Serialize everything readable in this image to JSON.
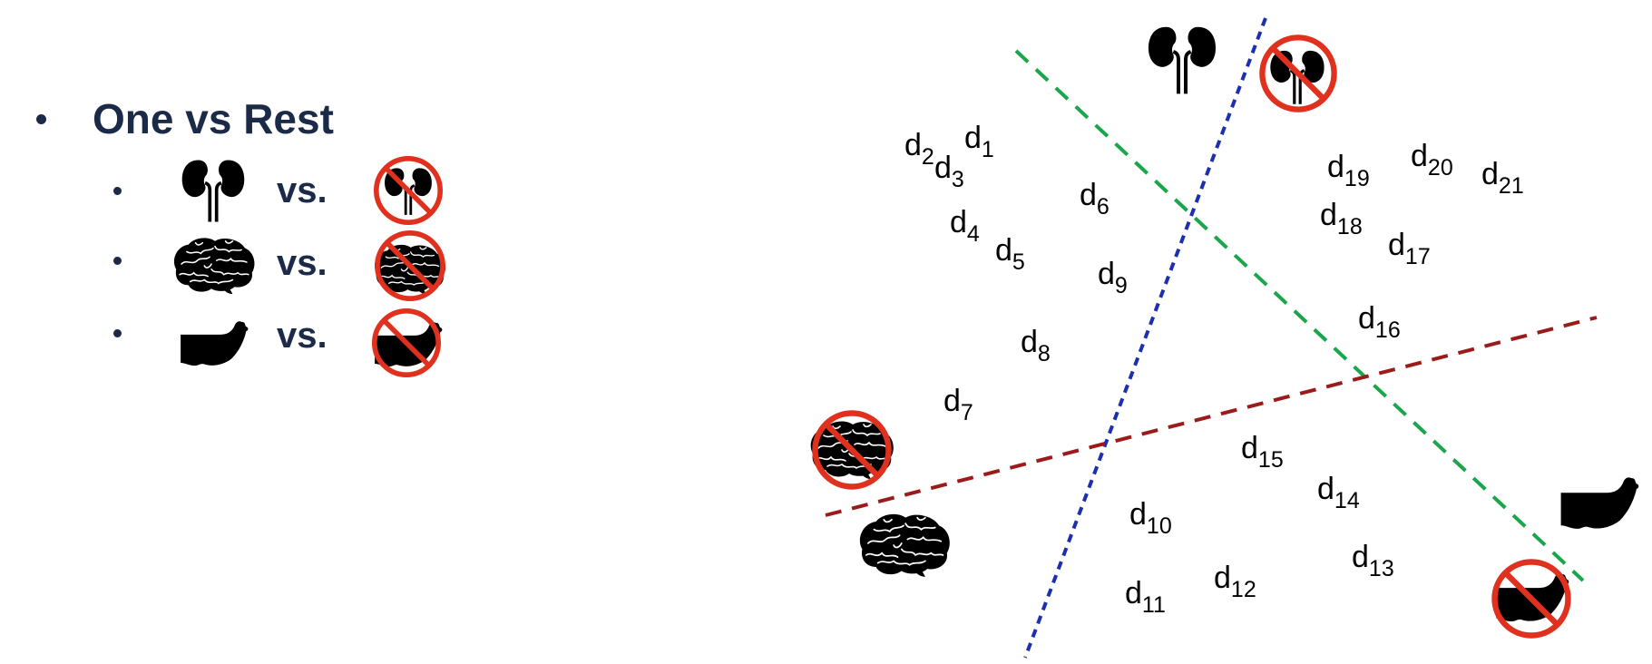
{
  "heading": "One vs Rest",
  "rows": [
    {
      "label": "vs.",
      "organ": "kidney-icon",
      "negated": "not-kidney-icon"
    },
    {
      "label": "vs.",
      "organ": "brain-icon",
      "negated": "not-brain-icon"
    },
    {
      "label": "vs.",
      "organ": "foot-icon",
      "negated": "not-foot-icon"
    }
  ],
  "points": [
    {
      "base": "d",
      "sub": "1"
    },
    {
      "base": "d",
      "sub": "2"
    },
    {
      "base": "d",
      "sub": "3"
    },
    {
      "base": "d",
      "sub": "4"
    },
    {
      "base": "d",
      "sub": "5"
    },
    {
      "base": "d",
      "sub": "6"
    },
    {
      "base": "d",
      "sub": "7"
    },
    {
      "base": "d",
      "sub": "8"
    },
    {
      "base": "d",
      "sub": "9"
    },
    {
      "base": "d",
      "sub": "10"
    },
    {
      "base": "d",
      "sub": "11"
    },
    {
      "base": "d",
      "sub": "12"
    },
    {
      "base": "d",
      "sub": "13"
    },
    {
      "base": "d",
      "sub": "14"
    },
    {
      "base": "d",
      "sub": "15"
    },
    {
      "base": "d",
      "sub": "16"
    },
    {
      "base": "d",
      "sub": "17"
    },
    {
      "base": "d",
      "sub": "18"
    },
    {
      "base": "d",
      "sub": "19"
    },
    {
      "base": "d",
      "sub": "20"
    },
    {
      "base": "d",
      "sub": "21"
    }
  ],
  "colors": {
    "text": "#1b2a47",
    "icon": "#000000",
    "prohibit": "#e0301e",
    "line_green": "#1aa64a",
    "line_blue": "#1c2fb0",
    "line_red": "#9b1b1b"
  }
}
